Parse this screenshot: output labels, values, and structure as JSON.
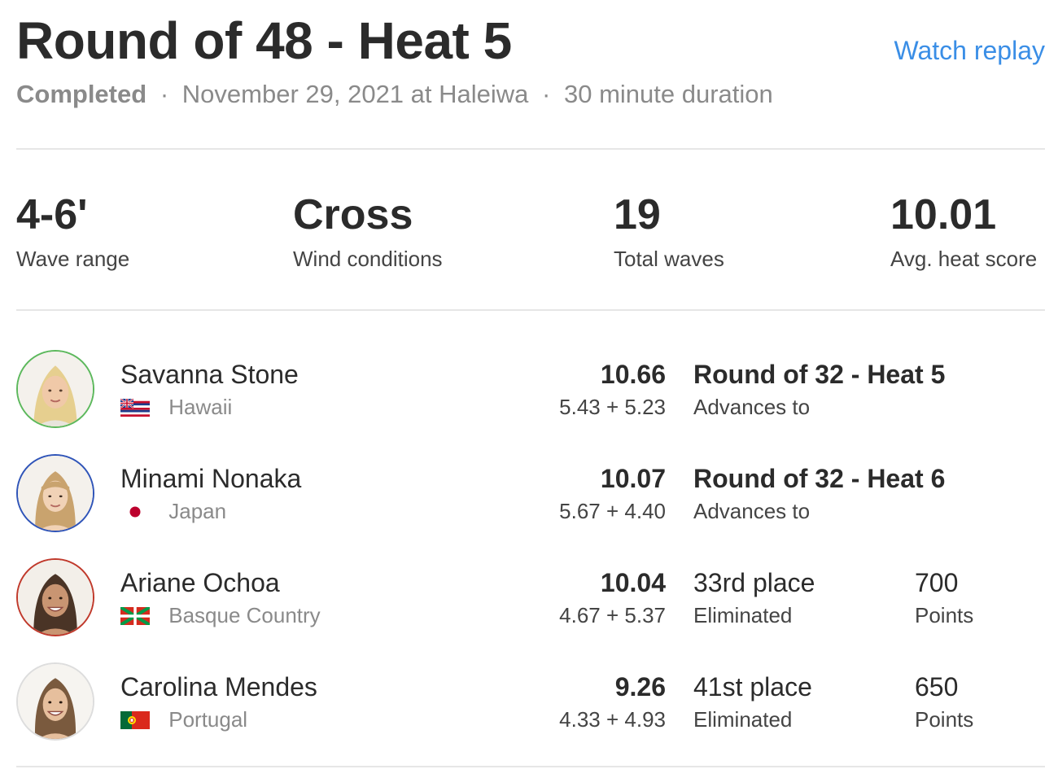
{
  "heat": {
    "title": "Round of 48 - Heat 5",
    "replay_label": "Watch replay",
    "status": "Completed",
    "separator": "·",
    "date_location": "November 29, 2021 at Haleiwa",
    "duration": "30 minute duration"
  },
  "stats": [
    {
      "value": "4-6'",
      "label": "Wave range"
    },
    {
      "value": "Cross",
      "label": "Wind conditions"
    },
    {
      "value": "19",
      "label": "Total waves"
    },
    {
      "value": "10.01",
      "label": "Avg. heat score"
    }
  ],
  "athletes": [
    {
      "name": "Savanna Stone",
      "country": "Hawaii",
      "flag_icon": "hawaii-flag-icon",
      "ring_color": "#5cb85c",
      "score": "10.66",
      "waves": "5.43 + 5.23",
      "result": "Round of 32 - Heat 5",
      "result_sub": "Advances to",
      "points": "",
      "points_label": ""
    },
    {
      "name": "Minami Nonaka",
      "country": "Japan",
      "flag_icon": "japan-flag-icon",
      "ring_color": "#2f54b8",
      "score": "10.07",
      "waves": "5.67 + 4.40",
      "result": "Round of 32 - Heat 6",
      "result_sub": "Advances to",
      "points": "",
      "points_label": ""
    },
    {
      "name": "Ariane Ochoa",
      "country": "Basque Country",
      "flag_icon": "basque-flag-icon",
      "ring_color": "#c0392b",
      "score": "10.04",
      "waves": "4.67 + 5.37",
      "result": "33rd place",
      "result_sub": "Eliminated",
      "points": "700",
      "points_label": "Points"
    },
    {
      "name": "Carolina Mendes",
      "country": "Portugal",
      "flag_icon": "portugal-flag-icon",
      "ring_color": "#dddddd",
      "score": "9.26",
      "waves": "4.33 + 4.93",
      "result": "41st place",
      "result_sub": "Eliminated",
      "points": "650",
      "points_label": "Points"
    }
  ],
  "colors": {
    "link": "#3a8ee6",
    "text": "#2b2b2b",
    "muted": "#8a8a8a",
    "divider": "#e6e6e6"
  }
}
